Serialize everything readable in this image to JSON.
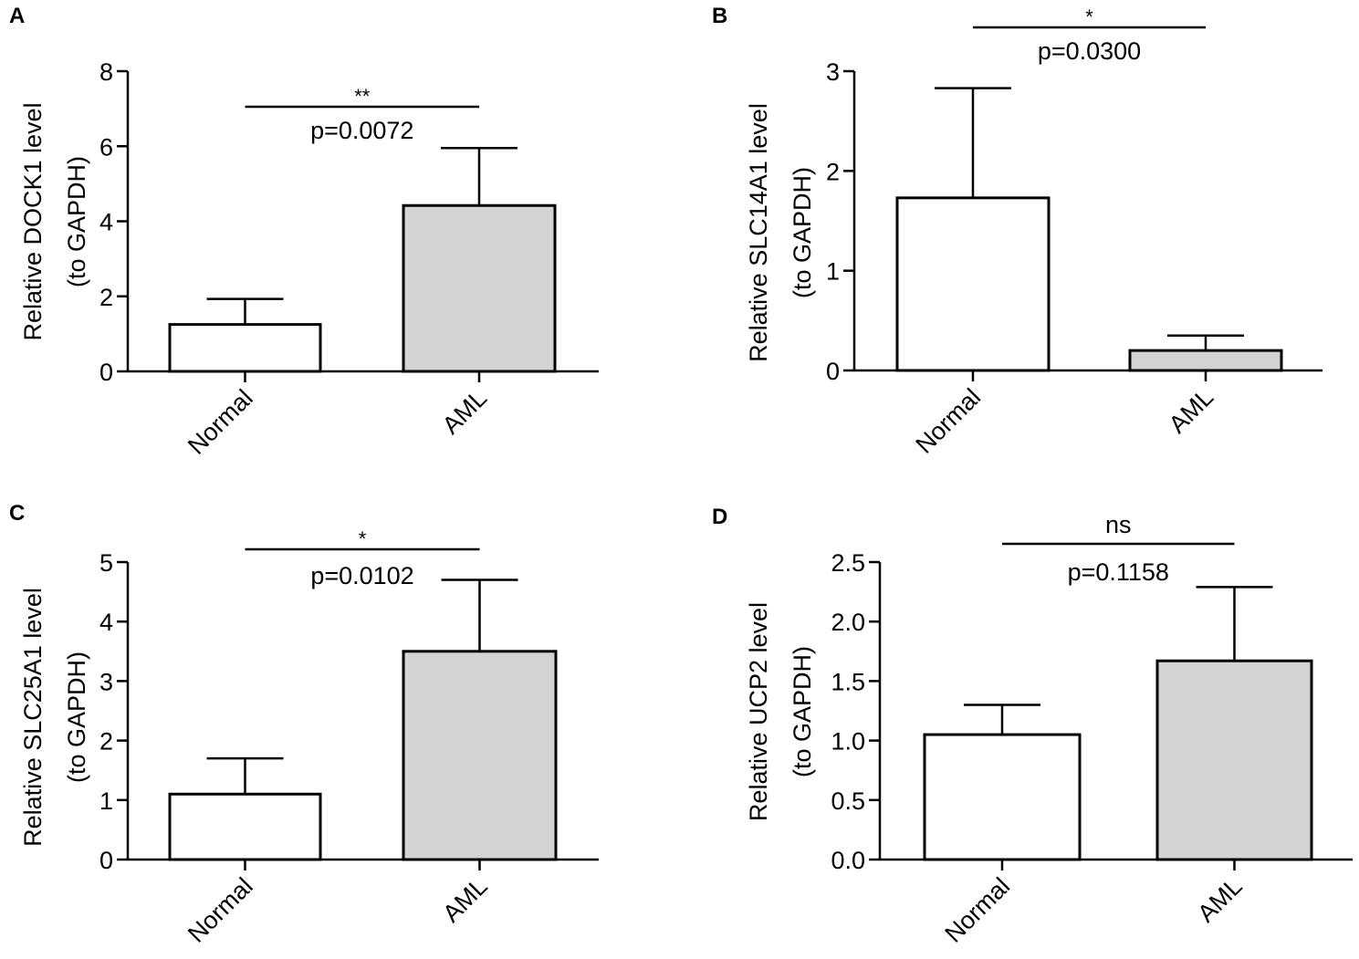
{
  "colors": {
    "normal_fill": "#ffffff",
    "aml_fill": "#d3d3d3",
    "stroke": "#000000"
  },
  "chart_data": [
    {
      "type": "bar",
      "panel": "A",
      "categories": [
        "Normal",
        "AML"
      ],
      "values": [
        1.25,
        4.42
      ],
      "error_upper": [
        1.93,
        5.95
      ],
      "ylabel_line1": "Relative DOCK1 level",
      "ylabel_line2": "(to GAPDH)",
      "ylim": [
        0,
        8
      ],
      "yticks": [
        0,
        2,
        4,
        6,
        8
      ],
      "ytick_labels": [
        "0",
        "2",
        "4",
        "6",
        "8"
      ],
      "significance": "**",
      "p_value": "p=0.0072"
    },
    {
      "type": "bar",
      "panel": "B",
      "categories": [
        "Normal",
        "AML"
      ],
      "values": [
        1.73,
        0.2
      ],
      "error_upper": [
        2.83,
        0.35
      ],
      "ylabel_line1": "Relative SLC14A1 level",
      "ylabel_line2": "(to GAPDH)",
      "ylim": [
        0,
        3
      ],
      "yticks": [
        0,
        1,
        2,
        3
      ],
      "ytick_labels": [
        "0",
        "1",
        "2",
        "3"
      ],
      "significance": "*",
      "p_value": "p=0.0300"
    },
    {
      "type": "bar",
      "panel": "C",
      "categories": [
        "Normal",
        "AML"
      ],
      "values": [
        1.1,
        3.5
      ],
      "error_upper": [
        1.7,
        4.7
      ],
      "ylabel_line1": "Relative SLC25A1 level",
      "ylabel_line2": "(to GAPDH)",
      "ylim": [
        0,
        5
      ],
      "yticks": [
        0,
        1,
        2,
        3,
        4,
        5
      ],
      "ytick_labels": [
        "0",
        "1",
        "2",
        "3",
        "4",
        "5"
      ],
      "significance": "*",
      "p_value": "p=0.0102"
    },
    {
      "type": "bar",
      "panel": "D",
      "categories": [
        "Normal",
        "AML"
      ],
      "values": [
        1.05,
        1.67
      ],
      "error_upper": [
        1.3,
        2.29
      ],
      "ylabel_line1": "Relative UCP2  level",
      "ylabel_line2": "(to GAPDH)",
      "ylim": [
        0,
        2.5
      ],
      "yticks": [
        0,
        0.5,
        1.0,
        1.5,
        2.0,
        2.5
      ],
      "ytick_labels": [
        "0.0",
        "0.5",
        "1.0",
        "1.5",
        "2.0",
        "2.5"
      ],
      "significance": "ns",
      "p_value": "p=0.1158"
    }
  ]
}
